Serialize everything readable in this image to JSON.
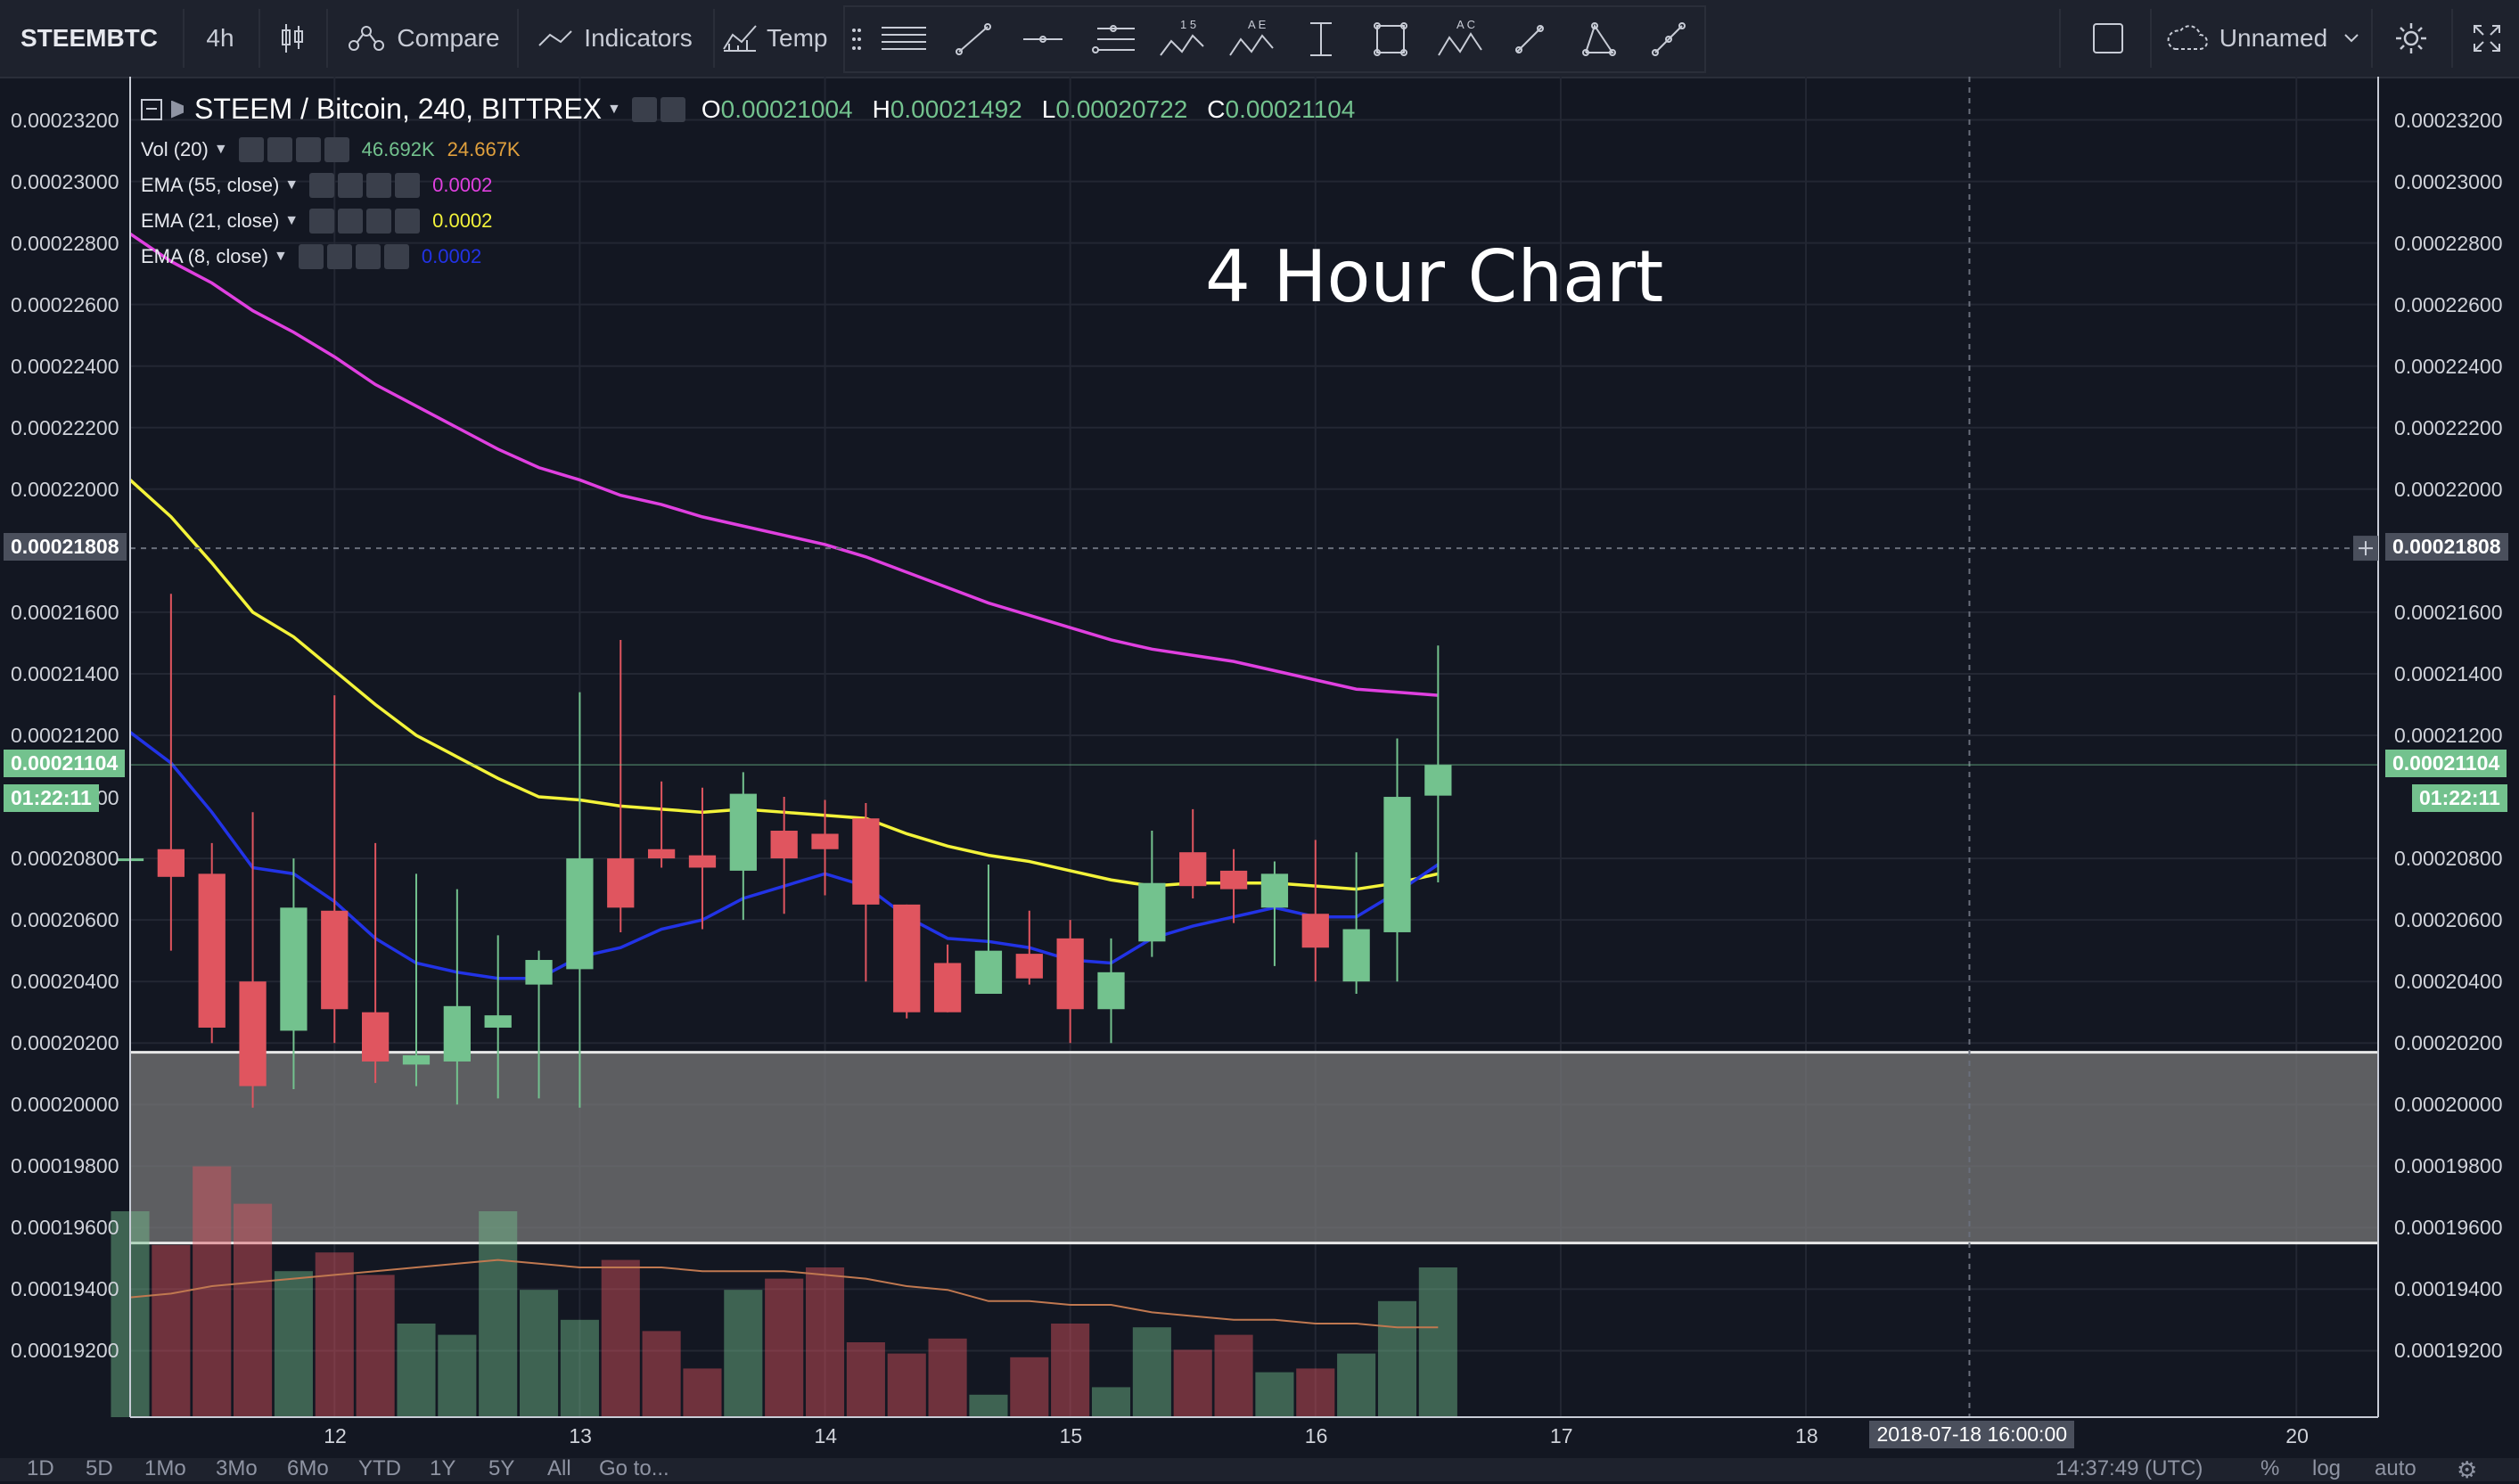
{
  "toolbar": {
    "symbol": "STEEMBTC",
    "interval": "4h",
    "compare_label": "Compare",
    "indicators_label": "Indicators",
    "templates_label": "Temp",
    "drawing_labels": {
      "fib": "1 5",
      "abcd": "A E",
      "xabcd": "A C"
    },
    "layout_name": "Unnamed",
    "icons": [
      "candles-icon",
      "compare-icon",
      "indicators-icon",
      "templates-icon",
      "drag-handle-icon",
      "horizontal-lines-icon",
      "trend-line-icon",
      "horizontal-ray-icon",
      "fib-retracement-icon",
      "fib-pattern-icon",
      "abcd-pattern-icon",
      "elliott-wave-icon",
      "vertical-line-icon",
      "rectangle-icon",
      "xabcd-pattern-icon",
      "brush-icon",
      "triangle-icon",
      "measure-icon",
      "fullscreen-icon",
      "cloud-icon",
      "gear-icon",
      "maximize-icon"
    ]
  },
  "legend": {
    "main": {
      "title": "STEEM / Bitcoin, 240, BITTREX",
      "o_label": "O",
      "o": "0.00021004",
      "h_label": "H",
      "h": "0.00021492",
      "l_label": "L",
      "l": "0.00020722",
      "c_label": "C",
      "c": "0.00021104"
    },
    "vol": {
      "name": "Vol (20)",
      "v1": "46.692K",
      "v2": "24.667K",
      "color1": "#73c28e",
      "color2": "#e0a03d"
    },
    "ema55": {
      "name": "EMA (55, close)",
      "value": "0.0002",
      "color": "#e040e0"
    },
    "ema21": {
      "name": "EMA (21, close)",
      "value": "0.0002",
      "color": "#f3f33a"
    },
    "ema8": {
      "name": "EMA (8, close)",
      "value": "0.0002",
      "color": "#2233e6"
    }
  },
  "annotation": "4 Hour Chart",
  "price_axis": {
    "ticks": [
      "0.00023200",
      "0.00023000",
      "0.00022800",
      "0.00022600",
      "0.00022400",
      "0.00022200",
      "0.00022000",
      "0.00021600",
      "0.00021400",
      "0.00021200",
      "0.00020800",
      "0.00020600",
      "0.00020400",
      "0.00020200",
      "0.00020000",
      "0.00019800",
      "0.00019600",
      "0.00019400",
      "0.00019200"
    ],
    "crosshair_price": "0.00021808",
    "last_price": "0.00021104",
    "countdown": "01:22:11",
    "partial_tick": "00"
  },
  "time_axis": {
    "ticks": [
      "12",
      "13",
      "14",
      "15",
      "16",
      "17",
      "18",
      "20"
    ],
    "crosshair_time": "2018-07-18 16:00:00"
  },
  "bottom_bar": {
    "ranges": [
      "1D",
      "5D",
      "1Mo",
      "3Mo",
      "6Mo",
      "YTD",
      "1Y",
      "5Y",
      "All"
    ],
    "goto": "Go to...",
    "clock": "14:37:49 (UTC)",
    "percent": "%",
    "log": "log",
    "auto": "auto"
  },
  "colors": {
    "background": "#131722",
    "up": "#73c28e",
    "down": "#e0555f",
    "zone": "#7a7a7a",
    "ma_volume": "#c07850"
  },
  "chart_data": {
    "type": "candlestick",
    "ylim": [
      0.000191,
      0.000233
    ],
    "xlim": [
      "2018-07-11 04:00",
      "2018-07-20 08:00"
    ],
    "candles": [
      {
        "t": "2018-07-11 04:00",
        "o": 0.000208,
        "h": 0.0002097,
        "l": 0.000199,
        "c": 0.000208
      },
      {
        "t": "2018-07-11 08:00",
        "o": 0.0002083,
        "h": 0.0002166,
        "l": 0.000205,
        "c": 0.0002074
      },
      {
        "t": "2018-07-11 12:00",
        "o": 0.0002075,
        "h": 0.0002085,
        "l": 0.000202,
        "c": 0.0002025
      },
      {
        "t": "2018-07-11 16:00",
        "o": 0.000204,
        "h": 0.0002095,
        "l": 0.0001999,
        "c": 0.0002006
      },
      {
        "t": "2018-07-11 20:00",
        "o": 0.0002024,
        "h": 0.000208,
        "l": 0.0002005,
        "c": 0.0002064
      },
      {
        "t": "2018-07-12 00:00",
        "o": 0.0002063,
        "h": 0.0002133,
        "l": 0.000202,
        "c": 0.0002031
      },
      {
        "t": "2018-07-12 04:00",
        "o": 0.000203,
        "h": 0.0002085,
        "l": 0.0002007,
        "c": 0.0002014
      },
      {
        "t": "2018-07-12 08:00",
        "o": 0.0002013,
        "h": 0.0002075,
        "l": 0.0002006,
        "c": 0.0002016
      },
      {
        "t": "2018-07-12 12:00",
        "o": 0.0002014,
        "h": 0.000207,
        "l": 0.0002,
        "c": 0.0002032
      },
      {
        "t": "2018-07-12 16:00",
        "o": 0.0002025,
        "h": 0.0002055,
        "l": 0.0002002,
        "c": 0.0002029
      },
      {
        "t": "2018-07-12 20:00",
        "o": 0.0002039,
        "h": 0.000205,
        "l": 0.0002002,
        "c": 0.0002047
      },
      {
        "t": "2018-07-13 00:00",
        "o": 0.0002044,
        "h": 0.0002134,
        "l": 0.0001999,
        "c": 0.000208
      },
      {
        "t": "2018-07-13 04:00",
        "o": 0.000208,
        "h": 0.0002151,
        "l": 0.0002056,
        "c": 0.0002064
      },
      {
        "t": "2018-07-13 08:00",
        "o": 0.0002083,
        "h": 0.0002105,
        "l": 0.0002077,
        "c": 0.000208
      },
      {
        "t": "2018-07-13 12:00",
        "o": 0.0002081,
        "h": 0.0002103,
        "l": 0.0002057,
        "c": 0.0002077
      },
      {
        "t": "2018-07-13 16:00",
        "o": 0.0002076,
        "h": 0.0002108,
        "l": 0.000206,
        "c": 0.0002101
      },
      {
        "t": "2018-07-13 20:00",
        "o": 0.0002089,
        "h": 0.00021,
        "l": 0.0002062,
        "c": 0.000208
      },
      {
        "t": "2018-07-14 00:00",
        "o": 0.0002088,
        "h": 0.0002099,
        "l": 0.0002068,
        "c": 0.0002083
      },
      {
        "t": "2018-07-14 04:00",
        "o": 0.0002093,
        "h": 0.0002098,
        "l": 0.000204,
        "c": 0.0002065
      },
      {
        "t": "2018-07-14 08:00",
        "o": 0.0002065,
        "h": 0.0002065,
        "l": 0.0002028,
        "c": 0.000203
      },
      {
        "t": "2018-07-14 12:00",
        "o": 0.0002046,
        "h": 0.0002052,
        "l": 0.000203,
        "c": 0.000203
      },
      {
        "t": "2018-07-14 16:00",
        "o": 0.0002036,
        "h": 0.0002078,
        "l": 0.0002036,
        "c": 0.000205
      },
      {
        "t": "2018-07-14 20:00",
        "o": 0.0002049,
        "h": 0.0002063,
        "l": 0.0002039,
        "c": 0.0002041
      },
      {
        "t": "2018-07-15 00:00",
        "o": 0.0002054,
        "h": 0.000206,
        "l": 0.000202,
        "c": 0.0002031
      },
      {
        "t": "2018-07-15 04:00",
        "o": 0.0002031,
        "h": 0.0002054,
        "l": 0.000202,
        "c": 0.0002043
      },
      {
        "t": "2018-07-15 08:00",
        "o": 0.0002053,
        "h": 0.0002089,
        "l": 0.0002048,
        "c": 0.0002072
      },
      {
        "t": "2018-07-15 12:00",
        "o": 0.0002082,
        "h": 0.0002096,
        "l": 0.0002067,
        "c": 0.0002071
      },
      {
        "t": "2018-07-15 16:00",
        "o": 0.0002076,
        "h": 0.0002083,
        "l": 0.0002059,
        "c": 0.000207
      },
      {
        "t": "2018-07-15 20:00",
        "o": 0.0002064,
        "h": 0.0002079,
        "l": 0.0002045,
        "c": 0.0002075
      },
      {
        "t": "2018-07-16 00:00",
        "o": 0.0002062,
        "h": 0.0002086,
        "l": 0.000204,
        "c": 0.0002051
      },
      {
        "t": "2018-07-16 04:00",
        "o": 0.000204,
        "h": 0.0002082,
        "l": 0.0002036,
        "c": 0.0002057
      },
      {
        "t": "2018-07-16 08:00",
        "o": 0.0002056,
        "h": 0.0002119,
        "l": 0.000204,
        "c": 0.00021
      },
      {
        "t": "2018-07-16 12:00",
        "o": 0.00021004,
        "h": 0.00021492,
        "l": 0.00020722,
        "c": 0.00021104
      }
    ],
    "ema55": [
      0.0002283,
      0.0002274,
      0.0002267,
      0.0002258,
      0.0002251,
      0.0002243,
      0.0002234,
      0.0002227,
      0.000222,
      0.0002213,
      0.0002207,
      0.0002203,
      0.0002198,
      0.0002195,
      0.0002191,
      0.0002188,
      0.0002185,
      0.0002182,
      0.0002178,
      0.0002173,
      0.0002168,
      0.0002163,
      0.0002159,
      0.0002155,
      0.0002151,
      0.0002148,
      0.0002146,
      0.0002144,
      0.0002141,
      0.0002138,
      0.0002135,
      0.0002134,
      0.0002133
    ],
    "ema21": [
      0.0002203,
      0.0002191,
      0.0002176,
      0.000216,
      0.0002152,
      0.0002141,
      0.000213,
      0.000212,
      0.0002113,
      0.0002106,
      0.00021,
      0.0002099,
      0.0002097,
      0.0002096,
      0.0002095,
      0.0002096,
      0.0002095,
      0.0002094,
      0.0002093,
      0.0002088,
      0.0002084,
      0.0002081,
      0.0002079,
      0.0002076,
      0.0002073,
      0.0002071,
      0.0002072,
      0.0002072,
      0.0002072,
      0.0002071,
      0.000207,
      0.0002072,
      0.0002075
    ],
    "ema8": [
      0.0002121,
      0.0002111,
      0.0002095,
      0.0002077,
      0.0002075,
      0.0002066,
      0.0002054,
      0.0002046,
      0.0002043,
      0.0002041,
      0.0002041,
      0.0002048,
      0.0002051,
      0.0002057,
      0.000206,
      0.0002067,
      0.0002071,
      0.0002075,
      0.0002071,
      0.0002061,
      0.0002054,
      0.0002053,
      0.0002051,
      0.0002047,
      0.0002046,
      0.0002054,
      0.0002058,
      0.0002061,
      0.0002064,
      0.0002061,
      0.0002061,
      0.0002069,
      0.0002078
    ],
    "volume_fractions": [
      0.55,
      0.46,
      0.67,
      0.57,
      0.39,
      0.44,
      0.38,
      0.25,
      0.22,
      0.55,
      0.34,
      0.26,
      0.42,
      0.23,
      0.13,
      0.34,
      0.37,
      0.4,
      0.2,
      0.17,
      0.21,
      0.06,
      0.16,
      0.25,
      0.08,
      0.24,
      0.18,
      0.22,
      0.12,
      0.13,
      0.17,
      0.31,
      0.4
    ],
    "volume_ma_fractions": [
      0.32,
      0.33,
      0.35,
      0.36,
      0.37,
      0.38,
      0.39,
      0.4,
      0.41,
      0.42,
      0.41,
      0.4,
      0.4,
      0.4,
      0.39,
      0.39,
      0.39,
      0.38,
      0.37,
      0.35,
      0.34,
      0.31,
      0.31,
      0.3,
      0.3,
      0.28,
      0.27,
      0.26,
      0.26,
      0.25,
      0.25,
      0.24,
      0.24
    ],
    "support_zone": [
      0.0001955,
      0.0002017
    ]
  }
}
